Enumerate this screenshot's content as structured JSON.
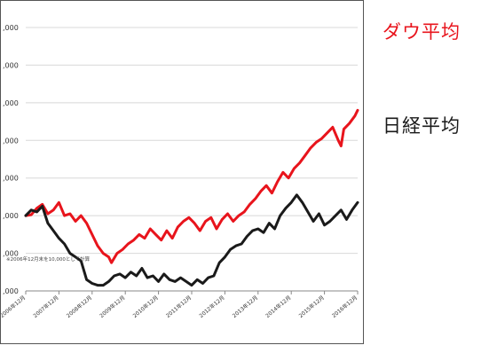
{
  "chart_data": {
    "type": "line",
    "title": "",
    "xlabel": "",
    "ylabel": "",
    "grid": true,
    "legend_placement": "right",
    "y_tick_labels": [
      ",000",
      ",000",
      ",000",
      ",000",
      ",000",
      ",000",
      ",000",
      ",000"
    ],
    "x_tick_labels": [
      "2006年12月",
      "2007年12月",
      "2008年12月",
      "2009年12月",
      "2010年12月",
      "2011年12月",
      "2012年12月",
      "2013年12月",
      "2014年12月",
      "2015年12月",
      "2016年12月"
    ],
    "annotation": "※2006年12月末を10,000として計算",
    "ylim": [
      6000,
      20000
    ],
    "xlim": [
      0,
      120
    ],
    "colors": {
      "dow": "#e8141c",
      "nikkei": "#1a1a1a",
      "grid": "#d8d8d8"
    },
    "series": [
      {
        "name": "ダウ平均",
        "color": "#e8141c",
        "points": [
          [
            0,
            10000
          ],
          [
            2,
            10050
          ],
          [
            4,
            10400
          ],
          [
            6,
            10600
          ],
          [
            8,
            10100
          ],
          [
            10,
            10300
          ],
          [
            12,
            10700
          ],
          [
            14,
            10000
          ],
          [
            16,
            10100
          ],
          [
            18,
            9700
          ],
          [
            20,
            10000
          ],
          [
            22,
            9600
          ],
          [
            24,
            9000
          ],
          [
            26,
            8400
          ],
          [
            28,
            8000
          ],
          [
            30,
            7800
          ],
          [
            31,
            7500
          ],
          [
            33,
            8000
          ],
          [
            35,
            8200
          ],
          [
            37,
            8500
          ],
          [
            39,
            8700
          ],
          [
            41,
            9000
          ],
          [
            43,
            8800
          ],
          [
            45,
            9300
          ],
          [
            47,
            9000
          ],
          [
            49,
            8700
          ],
          [
            51,
            9200
          ],
          [
            53,
            8800
          ],
          [
            55,
            9400
          ],
          [
            57,
            9700
          ],
          [
            59,
            9900
          ],
          [
            61,
            9600
          ],
          [
            63,
            9200
          ],
          [
            65,
            9700
          ],
          [
            67,
            9900
          ],
          [
            69,
            9300
          ],
          [
            71,
            9800
          ],
          [
            73,
            10100
          ],
          [
            75,
            9700
          ],
          [
            77,
            10000
          ],
          [
            79,
            10200
          ],
          [
            81,
            10600
          ],
          [
            83,
            10900
          ],
          [
            85,
            11300
          ],
          [
            87,
            11600
          ],
          [
            89,
            11200
          ],
          [
            91,
            11800
          ],
          [
            93,
            12300
          ],
          [
            95,
            12000
          ],
          [
            97,
            12500
          ],
          [
            99,
            12800
          ],
          [
            101,
            13200
          ],
          [
            103,
            13600
          ],
          [
            105,
            13900
          ],
          [
            107,
            14100
          ],
          [
            109,
            14400
          ],
          [
            111,
            14700
          ],
          [
            113,
            14000
          ],
          [
            114,
            13700
          ],
          [
            115,
            14600
          ],
          [
            117,
            14900
          ],
          [
            119,
            15300
          ],
          [
            120,
            15600
          ]
        ]
      },
      {
        "name": "日経平均",
        "color": "#1a1a1a",
        "points": [
          [
            0,
            10000
          ],
          [
            2,
            10300
          ],
          [
            4,
            10200
          ],
          [
            6,
            10500
          ],
          [
            8,
            9600
          ],
          [
            10,
            9200
          ],
          [
            12,
            8800
          ],
          [
            14,
            8500
          ],
          [
            16,
            8000
          ],
          [
            18,
            7800
          ],
          [
            20,
            7600
          ],
          [
            22,
            6600
          ],
          [
            24,
            6400
          ],
          [
            26,
            6300
          ],
          [
            28,
            6300
          ],
          [
            30,
            6500
          ],
          [
            32,
            6800
          ],
          [
            34,
            6900
          ],
          [
            36,
            6700
          ],
          [
            38,
            7000
          ],
          [
            40,
            6800
          ],
          [
            42,
            7200
          ],
          [
            44,
            6700
          ],
          [
            46,
            6800
          ],
          [
            48,
            6500
          ],
          [
            50,
            6900
          ],
          [
            52,
            6600
          ],
          [
            54,
            6500
          ],
          [
            56,
            6700
          ],
          [
            58,
            6500
          ],
          [
            60,
            6300
          ],
          [
            62,
            6600
          ],
          [
            64,
            6400
          ],
          [
            66,
            6700
          ],
          [
            68,
            6800
          ],
          [
            70,
            7500
          ],
          [
            72,
            7800
          ],
          [
            74,
            8200
          ],
          [
            76,
            8400
          ],
          [
            78,
            8500
          ],
          [
            80,
            8900
          ],
          [
            82,
            9200
          ],
          [
            84,
            9300
          ],
          [
            86,
            9100
          ],
          [
            88,
            9600
          ],
          [
            90,
            9300
          ],
          [
            92,
            10000
          ],
          [
            94,
            10400
          ],
          [
            96,
            10700
          ],
          [
            98,
            11100
          ],
          [
            100,
            10700
          ],
          [
            102,
            10200
          ],
          [
            104,
            9700
          ],
          [
            106,
            10100
          ],
          [
            108,
            9500
          ],
          [
            110,
            9700
          ],
          [
            112,
            10000
          ],
          [
            114,
            10300
          ],
          [
            116,
            9800
          ],
          [
            118,
            10300
          ],
          [
            120,
            10700
          ]
        ]
      }
    ]
  },
  "legend": {
    "dow_label": "ダウ平均",
    "nikkei_label": "日経平均",
    "dow_color": "#e8141c",
    "nikkei_color": "#1a1a1a"
  }
}
